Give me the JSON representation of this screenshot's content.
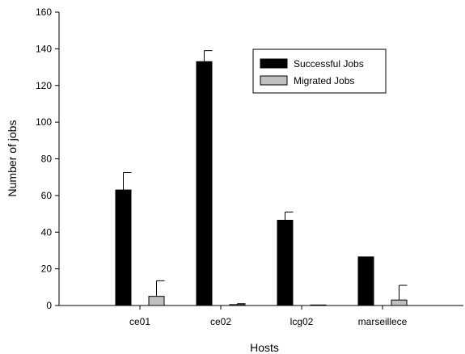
{
  "chart_data": {
    "type": "bar",
    "categories": [
      "ce01",
      "ce02",
      "lcg02",
      "marseillece"
    ],
    "series": [
      {
        "name": "Successful Jobs",
        "values": [
          63,
          133,
          46.5,
          26.5
        ],
        "errors": [
          9.5,
          6,
          4.5,
          null
        ],
        "color": "#000000"
      },
      {
        "name": "Migrated Jobs",
        "values": [
          5,
          0.5,
          0.3,
          3
        ],
        "errors": [
          8.5,
          0.5,
          null,
          8
        ],
        "color": "#bfbfbf"
      }
    ],
    "xlabel": "Hosts",
    "ylabel": "Number of jobs",
    "ylim": [
      0,
      160
    ],
    "yticks": [
      0,
      20,
      40,
      60,
      80,
      100,
      120,
      140,
      160
    ],
    "grid": false,
    "legend_position": "top-right"
  }
}
